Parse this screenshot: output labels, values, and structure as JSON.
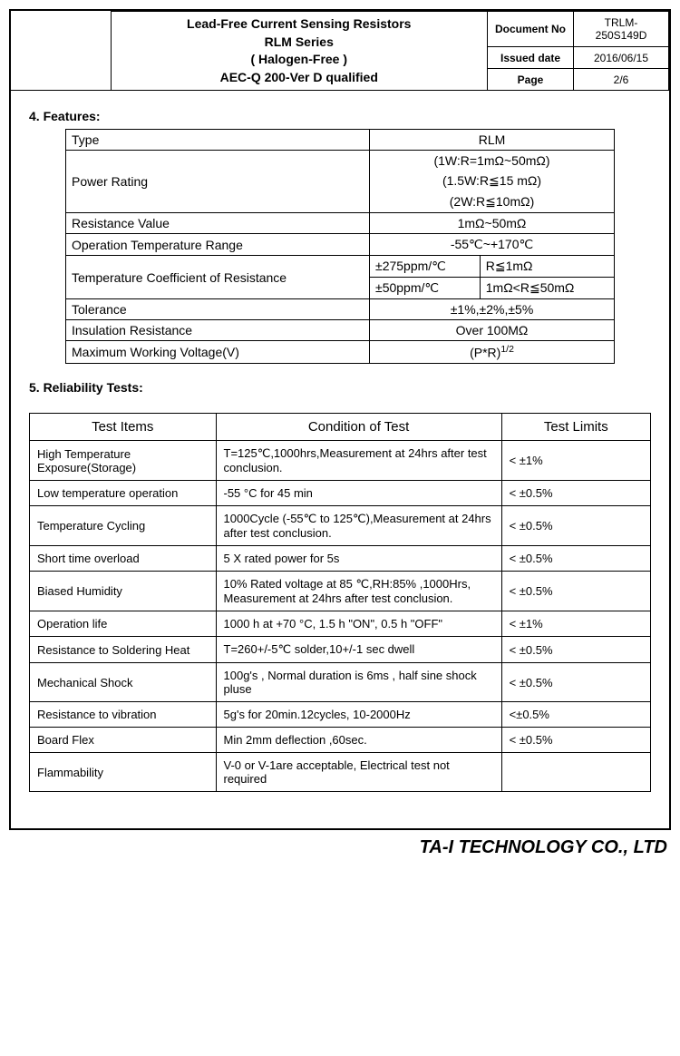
{
  "header": {
    "title_lines": [
      "Lead-Free Current Sensing Resistors",
      "RLM Series",
      "( Halogen-Free )",
      "AEC-Q 200-Ver D qualified"
    ],
    "meta": [
      {
        "label": "Document No",
        "value": "TRLM-250S149D"
      },
      {
        "label": "Issued date",
        "value": "2016/06/15"
      },
      {
        "label": "Page",
        "value": "2/6"
      }
    ]
  },
  "sections": {
    "features_title": "4. Features:",
    "tests_title": "5. Reliability Tests:"
  },
  "features": {
    "rows": {
      "type_label": "Type",
      "type_value": "RLM",
      "power_label": "Power Rating",
      "power_l1": "(1W:R=1mΩ~50mΩ)",
      "power_l2": "(1.5W:R≦15 mΩ)",
      "power_l3": "(2W:R≦10mΩ)",
      "res_label": "Resistance Value",
      "res_value": "1mΩ~50mΩ",
      "optemp_label": "Operation Temperature Range",
      "optemp_value": "-55℃~+170℃",
      "tcr_label": "Temperature Coefficient of Resistance",
      "tcr_a1": "±275ppm/℃",
      "tcr_a2": "R≦1mΩ",
      "tcr_b1": "±50ppm/℃",
      "tcr_b2": "1mΩ<R≦50mΩ",
      "tol_label": "Tolerance",
      "tol_value": "±1%,±2%,±5%",
      "ins_label": "Insulation Resistance",
      "ins_value": "Over 100MΩ",
      "mwv_label": "Maximum Working Voltage(V)",
      "mwv_value_html": "(P*R)<sup>1/2</sup>"
    }
  },
  "tests": {
    "headers": {
      "item": "Test Items",
      "cond": "Condition of Test",
      "limit": "Test Limits"
    },
    "rows": [
      {
        "item": "High Temperature Exposure(Storage)",
        "cond": "T=125℃,1000hrs,Measurement at 24hrs after test conclusion.",
        "limit": "< ±1%"
      },
      {
        "item": "Low temperature operation",
        "cond": "-55 °C for 45 min",
        "limit": "< ±0.5%"
      },
      {
        "item": "Temperature Cycling",
        "cond": "1000Cycle (-55℃ to 125℃),Measurement at 24hrs after test conclusion.",
        "limit": "< ±0.5%"
      },
      {
        "item": "Short time overload",
        "cond": "5 X rated power for 5s",
        "limit": "< ±0.5%"
      },
      {
        "item": "Biased Humidity",
        "cond": "10% Rated voltage at 85 ℃,RH:85% ,1000Hrs, Measurement at 24hrs after test conclusion.",
        "limit": "< ±0.5%"
      },
      {
        "item": "Operation life",
        "cond": "1000 h at +70 °C, 1.5 h \"ON\", 0.5 h \"OFF\"",
        "limit": "< ±1%"
      },
      {
        "item": "Resistance to Soldering Heat",
        "cond": "T=260+/-5℃ solder,10+/-1 sec dwell",
        "limit": "< ±0.5%"
      },
      {
        "item": "Mechanical Shock",
        "cond": "100g's , Normal duration is 6ms , half sine shock pluse",
        "limit": "< ±0.5%"
      },
      {
        "item": "Resistance to vibration",
        "cond": "5g's for 20min.12cycles, 10-2000Hz",
        "limit": "<±0.5%"
      },
      {
        "item": "Board Flex",
        "cond": "Min 2mm deflection ,60sec.",
        "limit": "< ±0.5%"
      },
      {
        "item": "Flammability",
        "cond": "V-0 or V-1are acceptable, Electrical test not required",
        "limit": ""
      }
    ]
  },
  "footer": {
    "company": "TA-I TECHNOLOGY CO., LTD"
  },
  "layout": {
    "col_widths_tests_pct": [
      30,
      46,
      24
    ],
    "col_widths_features_pct": [
      50,
      20,
      30
    ]
  }
}
